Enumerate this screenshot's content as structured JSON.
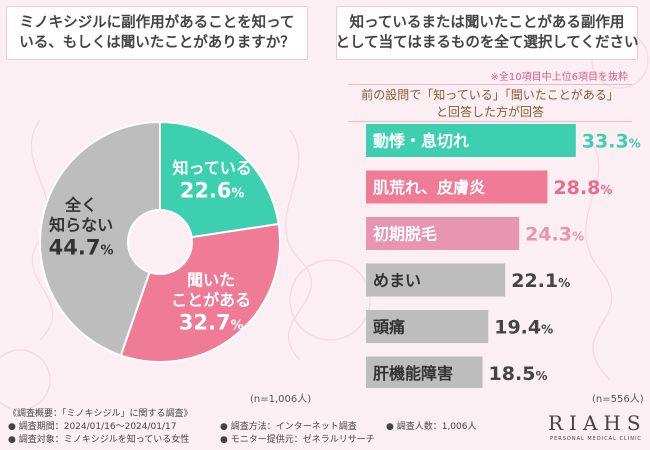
{
  "left_panel": {
    "question_lines": [
      "ミノキシジルに副作用があることを知って",
      "いる、もしくは聞いたことがありますか？"
    ],
    "n_label": "(n=1,006人)"
  },
  "right_panel": {
    "question_lines": [
      "知っているまたは聞いたことがある副作用",
      "として当てはまるものを全て選択してください"
    ],
    "note": "※全10項目中上位6項目を抜粋",
    "sub_lines": [
      "前の設問で「知っている」「聞いたことがある」",
      "と回答した方が回答"
    ],
    "n_label": "(n=556人)"
  },
  "footer": {
    "items": [
      "《調査概要：「ミノキシジル」に関する調査》",
      "● 調査期間：2024/01/16〜2024/01/17",
      "● 調査対象：ミノキシジルを知っている女性",
      "● 調査方法：インターネット調査",
      "● モニター提供元：ゼネラルリサーチ",
      "● 調査人数：1,006人"
    ]
  },
  "logo": {
    "text": "RIAHS",
    "sub": "PERSONAL MEDICAL CLINIC"
  },
  "colors": {
    "teal": "#3ccfb0",
    "pink": "#f07b97",
    "light_pink": "#e795b0",
    "gray": "#bdbdbd",
    "pct_pink": "#ec6b8a"
  },
  "chart_data": [
    {
      "type": "pie",
      "donut": true,
      "slices": [
        {
          "label": "知っている",
          "label_lines": [
            "知っている"
          ],
          "pct_num": "22.6",
          "pct_sign": "%",
          "value": 22.6,
          "color": "#3ccfb0",
          "text_color": "#ffffff"
        },
        {
          "label": "聞いたことがある",
          "label_lines": [
            "聞いた",
            "ことがある"
          ],
          "pct_num": "32.7",
          "pct_sign": "%",
          "value": 32.7,
          "color": "#f07b97",
          "text_color": "#ffffff"
        },
        {
          "label": "全く知らない",
          "label_lines": [
            "全く",
            "知らない"
          ],
          "pct_num": "44.7",
          "pct_sign": "%",
          "value": 44.7,
          "color": "#bdbdbd",
          "text_color": "#333333"
        }
      ]
    },
    {
      "type": "bar",
      "orientation": "horizontal",
      "categories": [
        "動悸・息切れ",
        "肌荒れ、皮膚炎",
        "初期脱毛",
        "めまい",
        "頭痛",
        "肝機能障害"
      ],
      "values": [
        33.3,
        28.8,
        24.3,
        22.1,
        19.4,
        18.5
      ],
      "pct_nums": [
        "33.3",
        "28.8",
        "24.3",
        "22.1",
        "19.4",
        "18.5"
      ],
      "pct_sign": "%",
      "bar_colors": [
        "#3ccfb0",
        "#f07b97",
        "#e795b0",
        "#bdbdbd",
        "#bdbdbd",
        "#bdbdbd"
      ],
      "label_colors": [
        "#ffffff",
        "#ffffff",
        "#ffffff",
        "#333333",
        "#333333",
        "#333333"
      ],
      "value_colors": [
        "#3ccfb0",
        "#ec6b8a",
        "#e795b0",
        "#444444",
        "#444444",
        "#444444"
      ],
      "unit": "%"
    }
  ]
}
